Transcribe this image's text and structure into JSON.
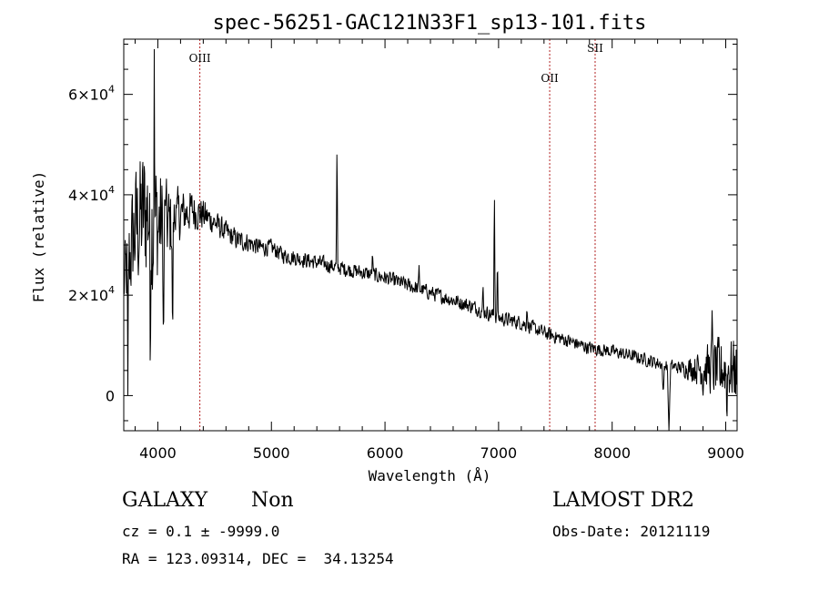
{
  "chart_data": {
    "type": "line",
    "title": "spec-56251-GAC121N33F1_sp13-101.fits",
    "xlabel": "Wavelength (Å)",
    "ylabel": "Flux (relative)",
    "xlim": [
      3700,
      9100
    ],
    "ylim": [
      -7000,
      71000
    ],
    "x_ticks": [
      4000,
      5000,
      6000,
      7000,
      8000,
      9000
    ],
    "x_tick_labels": [
      "4000",
      "5000",
      "6000",
      "7000",
      "8000",
      "9000"
    ],
    "y_ticks": [
      0,
      20000,
      40000,
      60000
    ],
    "y_tick_labels": [
      {
        "value": 0,
        "base": "0",
        "exp": ""
      },
      {
        "value": 20000,
        "base": "2×10",
        "exp": "4"
      },
      {
        "value": 40000,
        "base": "4×10",
        "exp": "4"
      },
      {
        "value": 60000,
        "base": "6×10",
        "exp": "4"
      }
    ],
    "grid": false,
    "reference_lines": [
      {
        "label": "OIII",
        "x": 4370,
        "label_y": 66500,
        "color": "#b22222"
      },
      {
        "label": "OII",
        "x": 7450,
        "label_y": 62500,
        "color": "#b22222"
      },
      {
        "label": "SII",
        "x": 7850,
        "label_y": 68500,
        "color": "#b22222"
      }
    ],
    "continuum": [
      [
        3700,
        22000
      ],
      [
        3800,
        33000
      ],
      [
        3900,
        37000
      ],
      [
        4000,
        34000
      ],
      [
        4100,
        34000
      ],
      [
        4200,
        36000
      ],
      [
        4300,
        37000
      ],
      [
        4400,
        36000
      ],
      [
        4500,
        34500
      ],
      [
        4600,
        32500
      ],
      [
        4700,
        31000
      ],
      [
        4800,
        30500
      ],
      [
        4900,
        29500
      ],
      [
        5000,
        29500
      ],
      [
        5100,
        28000
      ],
      [
        5200,
        27500
      ],
      [
        5400,
        26500
      ],
      [
        5600,
        25500
      ],
      [
        5800,
        24500
      ],
      [
        6000,
        23500
      ],
      [
        6200,
        22000
      ],
      [
        6400,
        20500
      ],
      [
        6600,
        19000
      ],
      [
        6800,
        17500
      ],
      [
        7000,
        15500
      ],
      [
        7200,
        14500
      ],
      [
        7400,
        12500
      ],
      [
        7600,
        11000
      ],
      [
        7800,
        9500
      ],
      [
        8000,
        8800
      ],
      [
        8200,
        7800
      ],
      [
        8400,
        6500
      ],
      [
        8600,
        5500
      ],
      [
        8800,
        5500
      ],
      [
        9000,
        5500
      ],
      [
        9100,
        5000
      ]
    ],
    "noise": [
      [
        3700,
        9000
      ],
      [
        3800,
        16000
      ],
      [
        3950,
        20000
      ],
      [
        4050,
        12000
      ],
      [
        4200,
        6000
      ],
      [
        4500,
        3000
      ],
      [
        5000,
        2000
      ],
      [
        6000,
        1800
      ],
      [
        7000,
        1800
      ],
      [
        8000,
        1600
      ],
      [
        8600,
        1600
      ],
      [
        8750,
        4000
      ],
      [
        8900,
        7000
      ],
      [
        9100,
        8000
      ]
    ],
    "features": [
      {
        "x": 3736,
        "y": 0,
        "w": 5
      },
      {
        "x": 3933,
        "y": 1000,
        "w": 5
      },
      {
        "x": 3968,
        "y": 69000,
        "w": 4
      },
      {
        "x": 4050,
        "y": 6000,
        "w": 6
      },
      {
        "x": 4070,
        "y": 41000,
        "w": 5
      },
      {
        "x": 4130,
        "y": 8000,
        "w": 6
      },
      {
        "x": 4160,
        "y": 38000,
        "w": 6
      },
      {
        "x": 5577,
        "y": 51500,
        "w": 6
      },
      {
        "x": 5890,
        "y": 29000,
        "w": 6
      },
      {
        "x": 6300,
        "y": 26000,
        "w": 6
      },
      {
        "x": 6863,
        "y": 22500,
        "w": 5
      },
      {
        "x": 6963,
        "y": 43000,
        "w": 6
      },
      {
        "x": 6990,
        "y": 29000,
        "w": 5
      },
      {
        "x": 7250,
        "y": 18000,
        "w": 6
      },
      {
        "x": 8450,
        "y": 0,
        "w": 10
      },
      {
        "x": 8500,
        "y": -7000,
        "w": 14
      },
      {
        "x": 8800,
        "y": 0,
        "w": 6
      },
      {
        "x": 8880,
        "y": 17000,
        "w": 6
      },
      {
        "x": 8950,
        "y": 1000,
        "w": 6
      },
      {
        "x": 9010,
        "y": -6000,
        "w": 6
      }
    ]
  },
  "info": {
    "object_class": "GALAXY",
    "subclass": "Non",
    "survey": "LAMOST DR2",
    "redshift": "cz = 0.1 ± -9999.0",
    "obs_date": "Obs-Date: 20121119",
    "coords": "RA = 123.09314, DEC =  34.13254"
  }
}
